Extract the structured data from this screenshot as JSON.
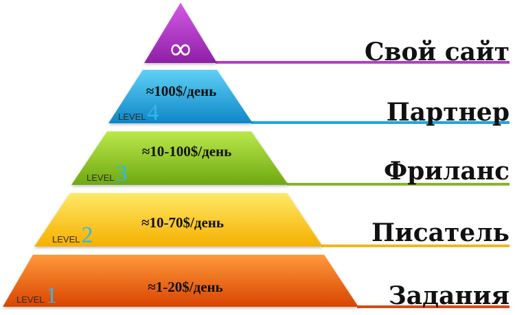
{
  "tiers": [
    {
      "id": "top",
      "label": "Свой сайт",
      "symbol": "∞",
      "earning": "",
      "level_word": "",
      "level_num": "",
      "color": "#c33fd6",
      "color_dark": "#8e1fa6",
      "line_color": "#b43cc6"
    },
    {
      "id": "level4",
      "label": "Партнер",
      "earning": "≈100$/день",
      "level_word": "LEVEL",
      "level_num": "4",
      "color": "#2fb8ee",
      "color_dark": "#0e86c6",
      "line_color": "#1ca6dd"
    },
    {
      "id": "level3",
      "label": "Фриланс",
      "earning": "≈10-100$/день",
      "level_word": "LEVEL",
      "level_num": "3",
      "color": "#9bd42a",
      "color_dark": "#6fa812",
      "line_color": "#86b62a"
    },
    {
      "id": "level2",
      "label": "Писатель",
      "earning": "≈10-70$/день",
      "level_word": "LEVEL",
      "level_num": "2",
      "color": "#ffd82a",
      "color_dark": "#f2b400",
      "line_color": "#f2b81a"
    },
    {
      "id": "level1",
      "label": "Задания",
      "earning": "≈1-20$/день",
      "level_word": "LEVEL",
      "level_num": "1",
      "color": "#ff7a1a",
      "color_dark": "#e04e00",
      "line_color": "#d84a10"
    }
  ]
}
